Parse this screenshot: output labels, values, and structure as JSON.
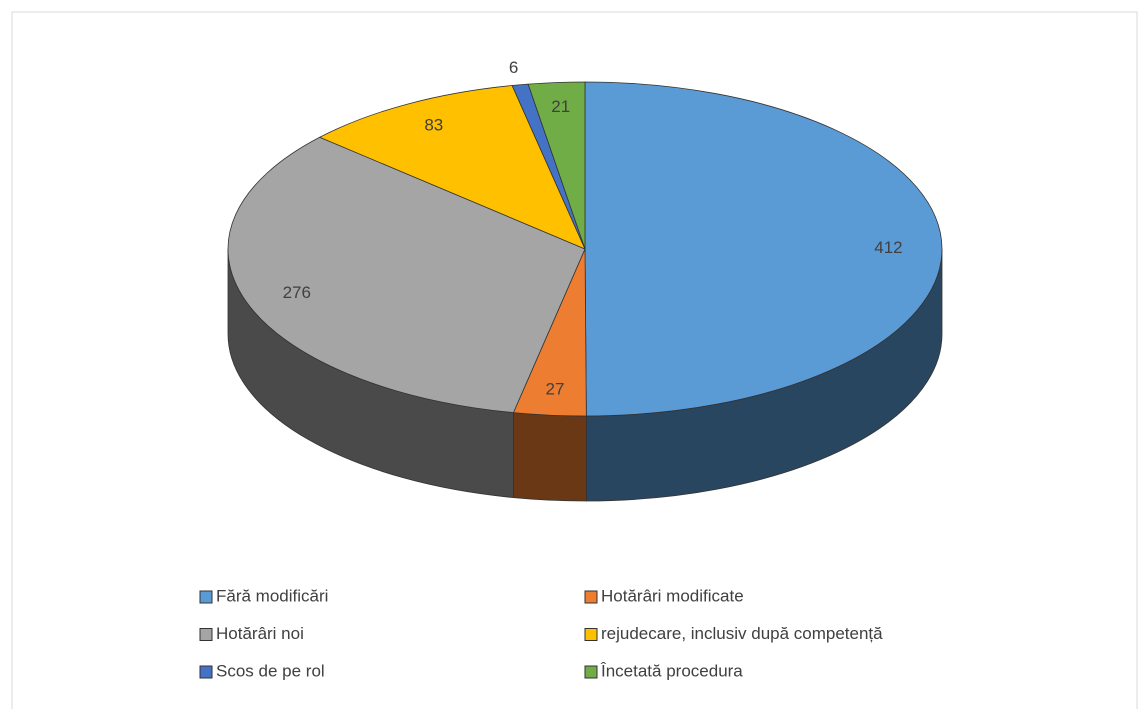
{
  "chart_data": {
    "type": "pie",
    "categories": [
      "Fără modificări",
      "Hotărâri modificate",
      "Hotărâri noi",
      "rejudecare, inclusiv după competență",
      "Scos de pe rol",
      "Încetată procedura"
    ],
    "values": [
      412,
      27,
      276,
      83,
      6,
      21
    ],
    "colors": [
      "#5b9bd5",
      "#ed7d31",
      "#a5a5a5",
      "#ffc000",
      "#4472c4",
      "#70ad47"
    ],
    "legend": "bottom"
  }
}
